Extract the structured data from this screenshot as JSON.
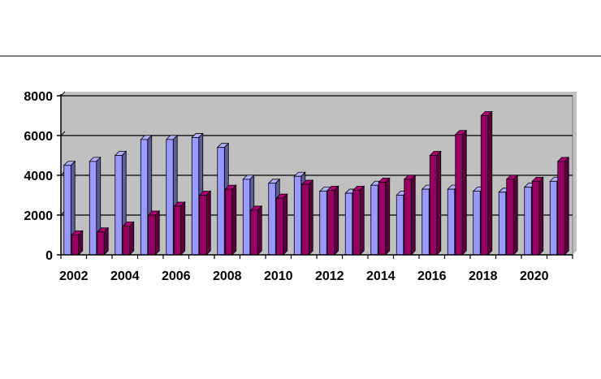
{
  "chart_data": {
    "type": "bar",
    "title": "",
    "xlabel": "",
    "ylabel": "",
    "ylim": [
      0,
      8000
    ],
    "y_ticks": [
      "0",
      "2000",
      "4000",
      "6000",
      "8000"
    ],
    "x_tick_labels": [
      "2002",
      "2004",
      "2006",
      "2008",
      "2010",
      "2012",
      "2014",
      "2016",
      "2018",
      "2020"
    ],
    "categories": [
      "2002",
      "2003",
      "2004",
      "2005",
      "2006",
      "2007",
      "2008",
      "2009",
      "2010",
      "2011",
      "2012",
      "2013",
      "2014",
      "2015",
      "2016",
      "2017",
      "2018",
      "2019",
      "2020",
      "2021"
    ],
    "grid": true,
    "legend": "none",
    "background_color": "#c0c0c0",
    "series": [
      {
        "color": "#9999ff",
        "values": [
          4500,
          4700,
          5000,
          5800,
          5800,
          5900,
          5400,
          3800,
          3600,
          3950,
          3200,
          3100,
          3500,
          3000,
          3300,
          3300,
          3200,
          3150,
          3400,
          3700
        ]
      },
      {
        "color": "#990066",
        "values": [
          1000,
          1150,
          1450,
          2000,
          2450,
          3000,
          3300,
          2250,
          2850,
          3550,
          3250,
          3250,
          3650,
          3800,
          5000,
          6050,
          7000,
          3800,
          3700,
          4700
        ]
      }
    ]
  }
}
